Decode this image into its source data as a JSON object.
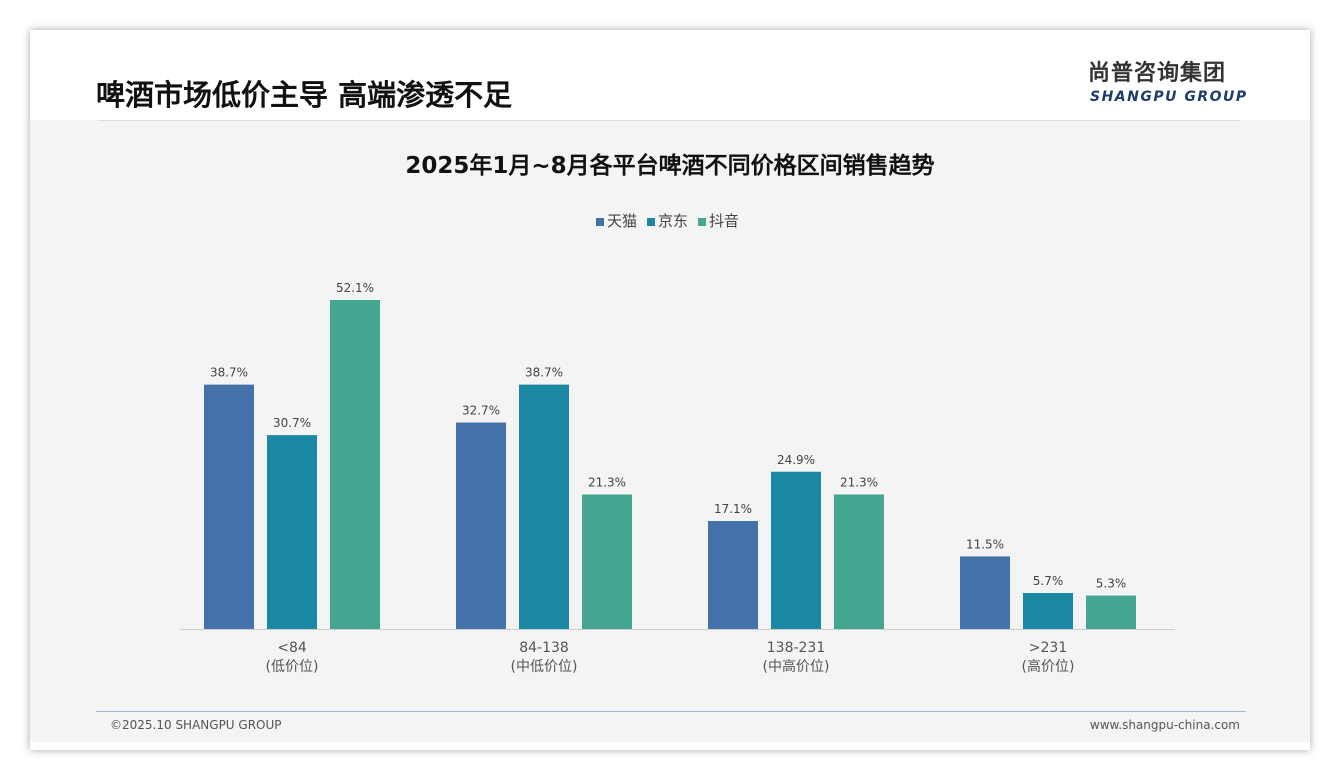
{
  "header": {
    "title": "啤酒市场低价主导 高端渗透不足",
    "logo_cn": "尚普咨询集团",
    "logo_en": "SHANGPU GROUP"
  },
  "footer": {
    "copyright": "©2025.10 SHANGPU GROUP",
    "url": "www.shangpu-china.com"
  },
  "colors": {
    "天猫": "#4472a8",
    "京东": "#1a88a2",
    "抖音": "#43a792"
  },
  "chart_data": {
    "type": "bar",
    "title": "2025年1月~8月各平台啤酒不同价格区间销售趋势",
    "categories": [
      "<84",
      "84-138",
      "138-231",
      ">231"
    ],
    "category_sublabels": [
      "(低价位)",
      "(中低价位)",
      "(中高价位)",
      "(高价位)"
    ],
    "series": [
      {
        "name": "天猫",
        "values": [
          38.7,
          32.7,
          17.1,
          11.5
        ]
      },
      {
        "name": "京东",
        "values": [
          30.7,
          38.7,
          24.9,
          5.7
        ]
      },
      {
        "name": "抖音",
        "values": [
          52.1,
          21.3,
          21.3,
          5.3
        ]
      }
    ],
    "unit": "%",
    "ylim": [
      0,
      55
    ],
    "legend": "top-center",
    "grid": false
  }
}
